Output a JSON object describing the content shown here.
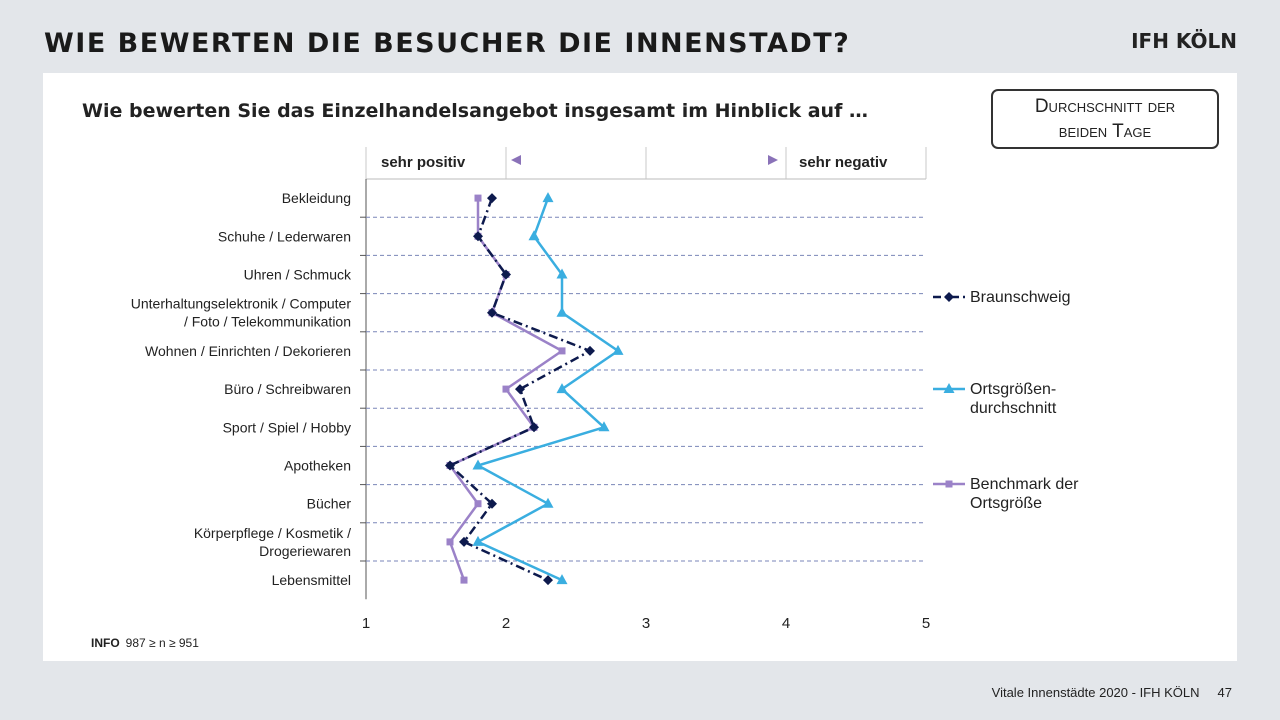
{
  "header": {
    "title": "WIE BEWERTEN DIE BESUCHER DIE INNENSTADT?",
    "logo": "IFH KÖLN"
  },
  "question": "Wie bewerten Sie das Einzelhandelsangebot insgesamt im Hinblick auf …",
  "average_box": {
    "line1": "Durchschnitt der",
    "line2": "beiden Tage"
  },
  "info": {
    "label": "INFO",
    "text": "987 ≥ n ≥ 951"
  },
  "footer": {
    "text": "Vitale Innenstädte 2020 - IFH KÖLN",
    "page": "47"
  },
  "colors": {
    "braunschweig": "#0d1a4d",
    "ortsgroesse": "#3aaee0",
    "benchmark": "#9b82c8",
    "gridline": "#7a86b8"
  },
  "chart_data": {
    "type": "line",
    "orientation": "horizontal",
    "scale_left": "sehr positiv",
    "scale_right": "sehr negativ",
    "xlim": [
      1,
      5
    ],
    "x_ticks": [
      "1",
      "2",
      "3",
      "4",
      "5"
    ],
    "categories": [
      [
        "Bekleidung"
      ],
      [
        "Schuhe / Lederwaren"
      ],
      [
        "Uhren / Schmuck"
      ],
      [
        "Unterhaltungselektronik / Computer",
        "/ Foto / Telekommunikation"
      ],
      [
        "Wohnen / Einrichten / Dekorieren"
      ],
      [
        "Büro / Schreibwaren"
      ],
      [
        "Sport / Spiel / Hobby"
      ],
      [
        "Apotheken"
      ],
      [
        "Bücher"
      ],
      [
        "Körperpflege / Kosmetik /",
        "Drogeriewaren"
      ],
      [
        "Lebensmittel"
      ]
    ],
    "series": [
      {
        "key": "braunschweig",
        "legend": [
          "Braunschweig"
        ],
        "marker": "diamond",
        "style": "dashdot",
        "values": [
          1.9,
          1.8,
          2.0,
          1.9,
          2.6,
          2.1,
          2.2,
          1.6,
          1.9,
          1.7,
          2.3
        ]
      },
      {
        "key": "ortsgroesse",
        "legend": [
          "Ortsgrößen-",
          "durchschnitt"
        ],
        "marker": "triangle",
        "style": "solid",
        "values": [
          2.3,
          2.2,
          2.4,
          2.4,
          2.8,
          2.4,
          2.7,
          1.8,
          2.3,
          1.8,
          2.4
        ]
      },
      {
        "key": "benchmark",
        "legend": [
          "Benchmark der",
          "Ortsgröße"
        ],
        "marker": "square",
        "style": "solid",
        "values": [
          1.8,
          1.8,
          2.0,
          1.9,
          2.4,
          2.0,
          2.2,
          1.6,
          1.8,
          1.6,
          1.7
        ]
      }
    ],
    "grid": true,
    "legend_position": "right"
  }
}
